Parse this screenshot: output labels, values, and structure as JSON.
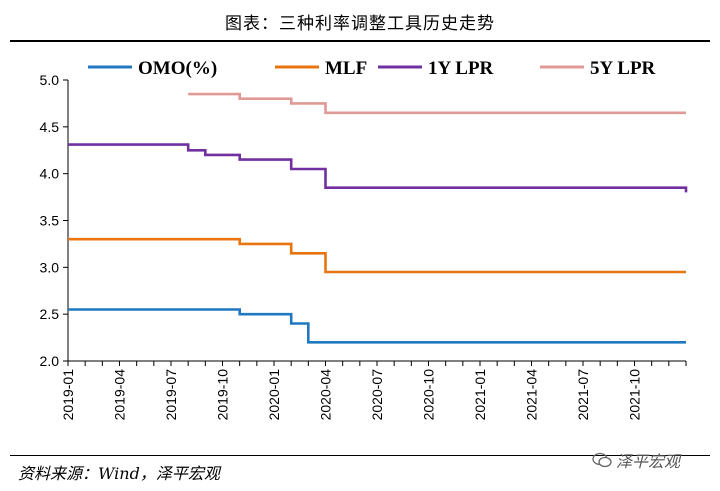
{
  "header": {
    "title": "图表：三种利率调整工具历史走势"
  },
  "footer": {
    "source": "资料来源：Wind，泽平宏观",
    "watermark": "泽平宏观"
  },
  "chart_data": {
    "type": "line",
    "title": "图表：三种利率调整工具历史走势",
    "x_start": "2019-01",
    "x_end": "2021-12",
    "x_ticks": [
      "2019-01",
      "2019-04",
      "2019-07",
      "2019-10",
      "2020-01",
      "2020-04",
      "2020-07",
      "2020-10",
      "2021-01",
      "2021-04",
      "2021-07",
      "2021-10"
    ],
    "y_ticks": [
      "5.0",
      "4.5",
      "4.0",
      "3.5",
      "3.0",
      "2.5",
      "2.0"
    ],
    "ylim": [
      2.0,
      5.0
    ],
    "legend_position": "top",
    "grid": false,
    "series": [
      {
        "name": "OMO(%)",
        "color": "#1f78c1",
        "x": [
          "2019-01",
          "2019-11",
          "2020-02",
          "2020-03",
          "2021-12"
        ],
        "values": [
          2.55,
          2.5,
          2.4,
          2.2,
          2.2
        ]
      },
      {
        "name": "MLF",
        "color": "#e87510",
        "x": [
          "2019-01",
          "2019-11",
          "2020-02",
          "2020-04",
          "2021-12"
        ],
        "values": [
          3.3,
          3.25,
          3.15,
          2.95,
          2.95
        ]
      },
      {
        "name": "1Y LPR",
        "color": "#7030a0",
        "x": [
          "2019-01",
          "2019-08",
          "2019-09",
          "2019-11",
          "2020-02",
          "2020-04",
          "2021-12"
        ],
        "values": [
          4.31,
          4.25,
          4.2,
          4.15,
          4.05,
          3.85,
          3.8
        ]
      },
      {
        "name": "5Y LPR",
        "color": "#e09a96",
        "x": [
          "2019-08",
          "2019-11",
          "2020-02",
          "2020-04",
          "2021-12"
        ],
        "values": [
          4.85,
          4.8,
          4.75,
          4.65,
          4.65
        ]
      }
    ]
  }
}
